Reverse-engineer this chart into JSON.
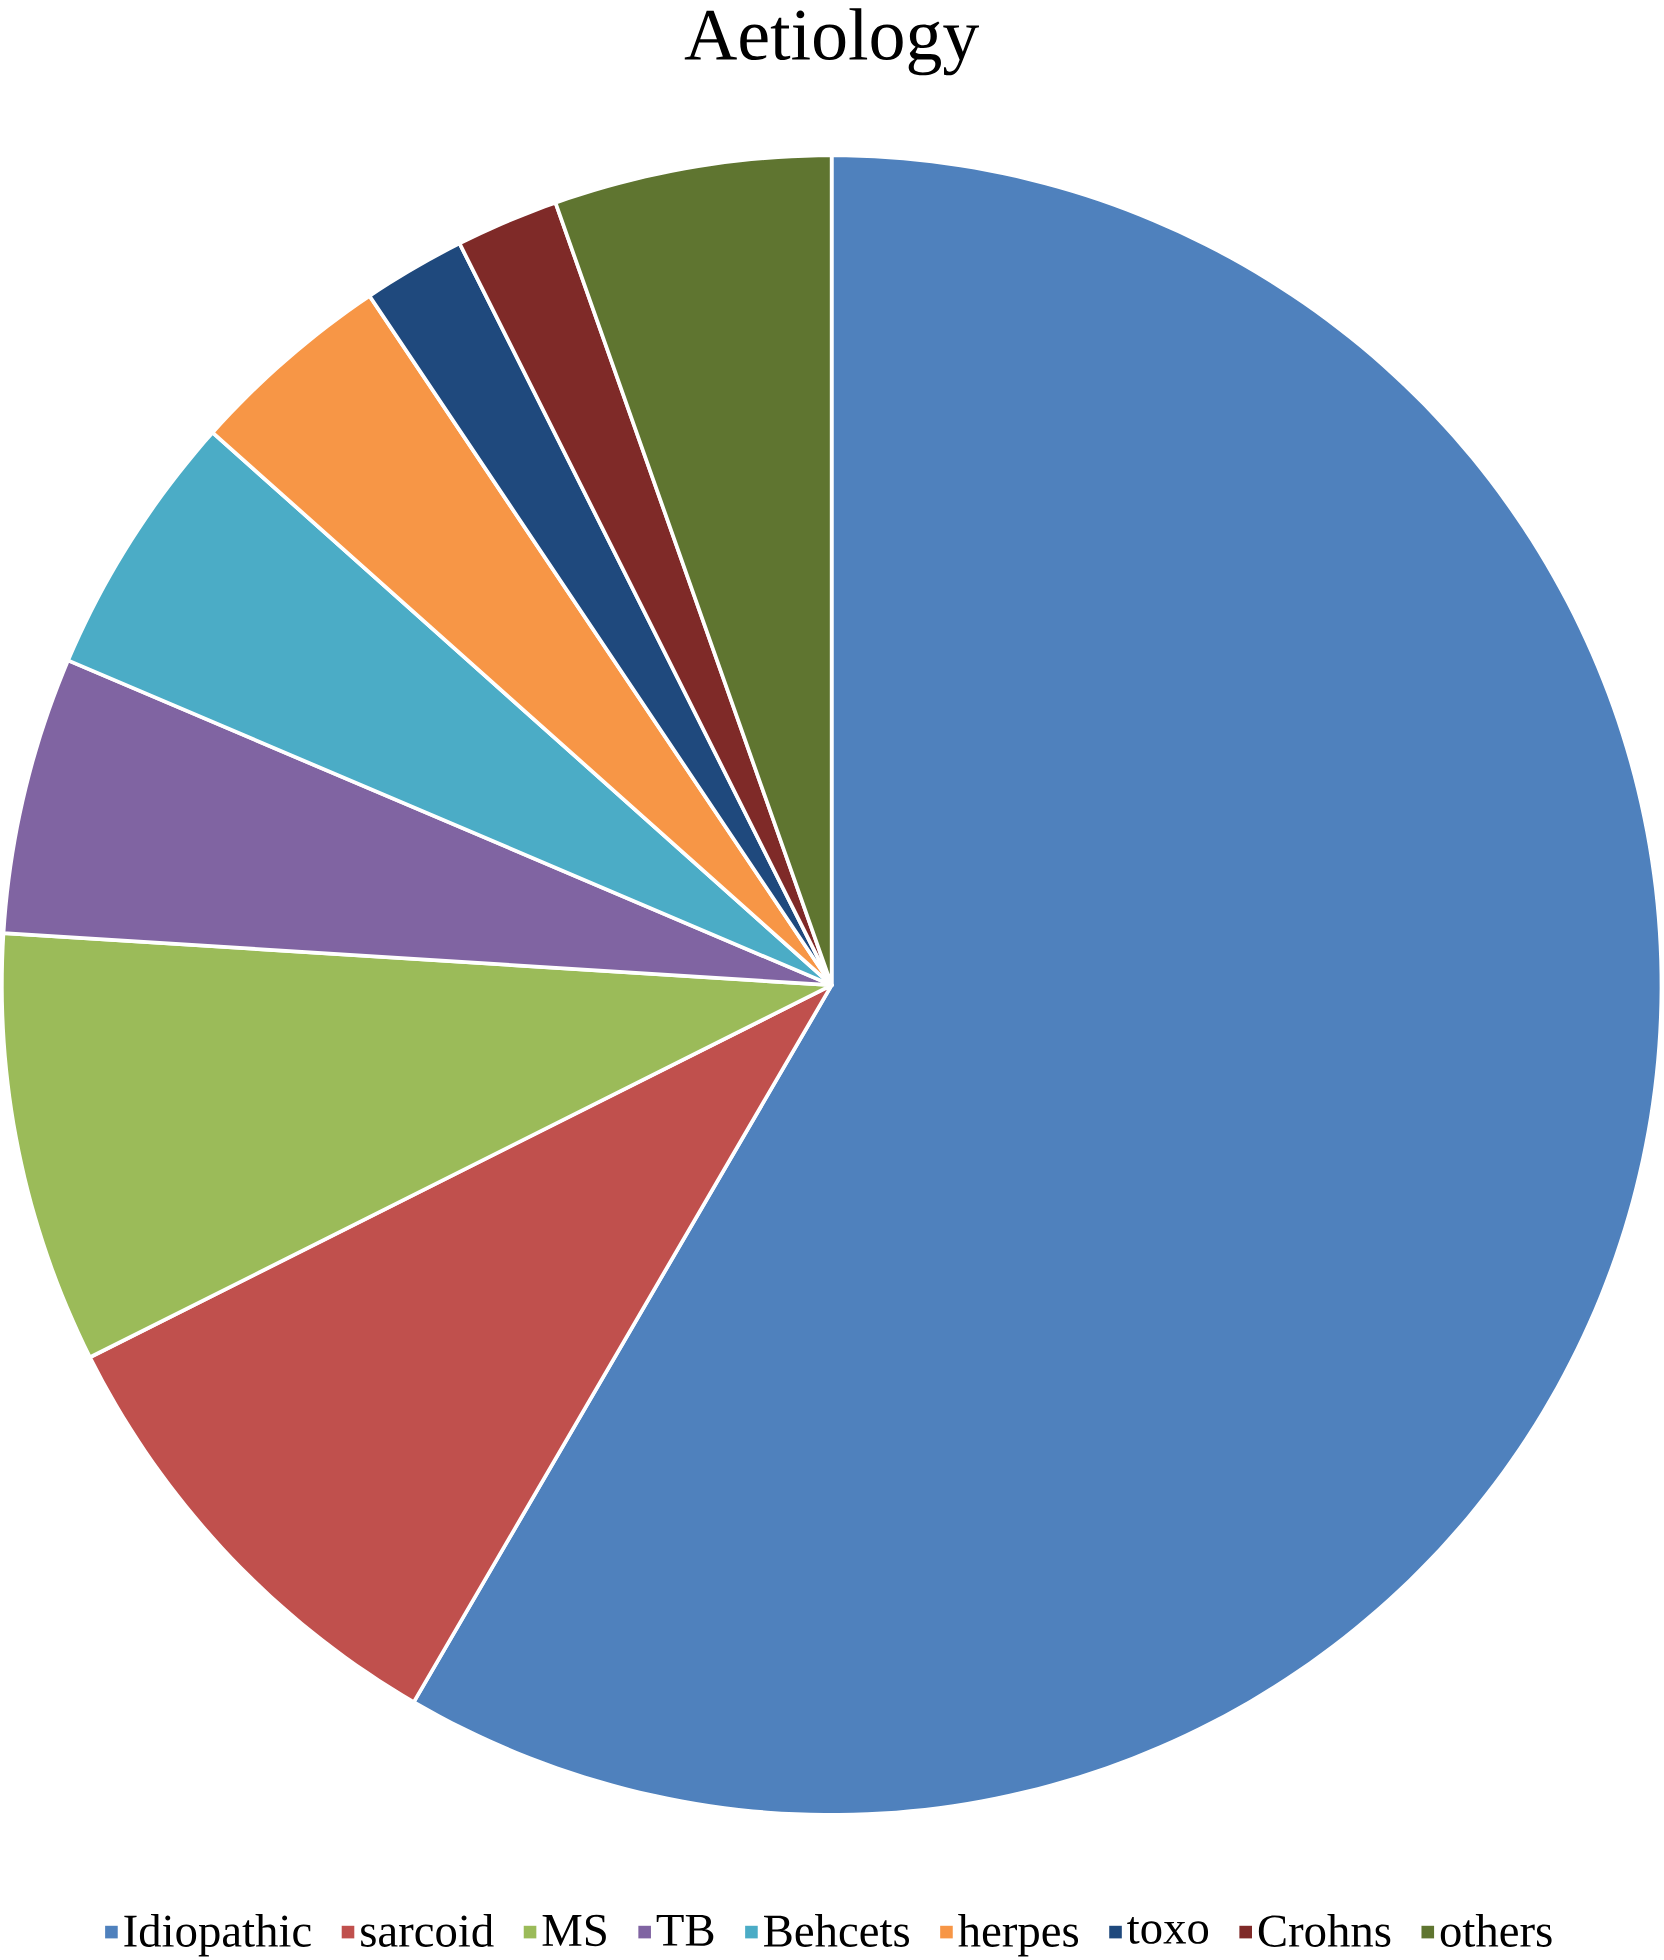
{
  "chart_data": {
    "type": "pie",
    "title": "Aetiology",
    "categories": [
      "Idiopathic",
      "sarcoid",
      "MS",
      "TB",
      "Behcets",
      "herpes",
      "toxo",
      "Crohns",
      "others"
    ],
    "values": [
      58.4,
      9.2,
      8.4,
      5.4,
      5.2,
      4.0,
      2.0,
      2.0,
      5.4
    ],
    "colors": [
      "#4f81bd",
      "#c0504d",
      "#9bbb59",
      "#8064a2",
      "#4bacc6",
      "#f79646",
      "#1f497d",
      "#7f2a28",
      "#5f7530"
    ],
    "legend": "bottom"
  }
}
